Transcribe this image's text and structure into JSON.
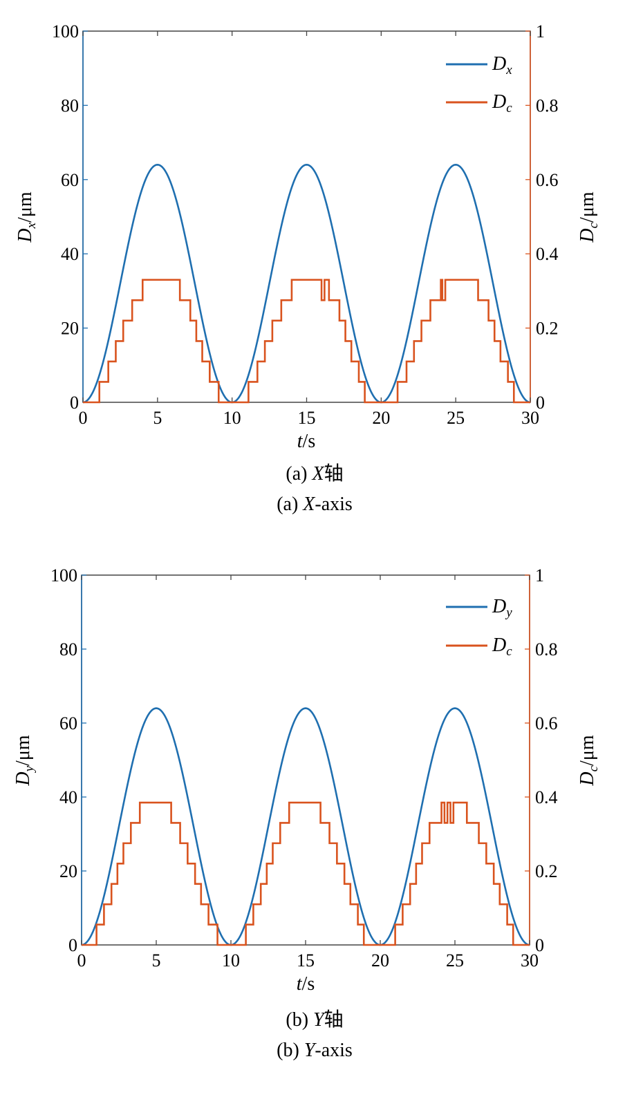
{
  "chart_data": [
    {
      "type": "line",
      "id": "a",
      "xlabel": {
        "main": "t",
        "unit": "/s"
      },
      "ylabel_left": {
        "main": "D",
        "sub": "x",
        "unit": "/μm"
      },
      "ylabel_right": {
        "main": "D",
        "sub": "c",
        "unit": "/μm"
      },
      "caption_cn": {
        "prefix": "(a) ",
        "var": "X",
        "suffix": "轴"
      },
      "caption_en": {
        "prefix": "(a) ",
        "var": "X",
        "suffix": "-axis"
      },
      "xlim": [
        0,
        30
      ],
      "ylim_left": [
        0,
        100
      ],
      "ylim_right": [
        0,
        1
      ],
      "x_ticks": [
        "0",
        "5",
        "10",
        "15",
        "20",
        "25",
        "30"
      ],
      "y_left_ticks": [
        "0",
        "20",
        "40",
        "60",
        "80",
        "100"
      ],
      "y_right_ticks": [
        "0",
        "0.2",
        "0.4",
        "0.6",
        "0.8",
        "1"
      ],
      "series": [
        {
          "name": "D",
          "sub": "x",
          "axis": "left",
          "color": "#1f6fb0",
          "shape": "raised_cosine",
          "peak": 64,
          "period": 10
        },
        {
          "name": "D",
          "sub": "c",
          "axis": "right",
          "color": "#d9531e",
          "shape": "step",
          "points": [
            [
              0,
              0
            ],
            [
              1.1,
              0
            ],
            [
              1.1,
              0.055
            ],
            [
              1.7,
              0.055
            ],
            [
              1.7,
              0.11
            ],
            [
              2.2,
              0.11
            ],
            [
              2.2,
              0.165
            ],
            [
              2.7,
              0.165
            ],
            [
              2.7,
              0.22
            ],
            [
              3.3,
              0.22
            ],
            [
              3.3,
              0.275
            ],
            [
              4.0,
              0.275
            ],
            [
              4.0,
              0.33
            ],
            [
              6.5,
              0.33
            ],
            [
              6.5,
              0.275
            ],
            [
              7.2,
              0.275
            ],
            [
              7.2,
              0.22
            ],
            [
              7.6,
              0.22
            ],
            [
              7.6,
              0.165
            ],
            [
              8.0,
              0.165
            ],
            [
              8.0,
              0.11
            ],
            [
              8.5,
              0.11
            ],
            [
              8.5,
              0.055
            ],
            [
              9.1,
              0.055
            ],
            [
              9.1,
              0
            ],
            [
              11.1,
              0
            ],
            [
              11.1,
              0.055
            ],
            [
              11.7,
              0.055
            ],
            [
              11.7,
              0.11
            ],
            [
              12.2,
              0.11
            ],
            [
              12.2,
              0.165
            ],
            [
              12.7,
              0.165
            ],
            [
              12.7,
              0.22
            ],
            [
              13.3,
              0.22
            ],
            [
              13.3,
              0.275
            ],
            [
              14.0,
              0.275
            ],
            [
              14.0,
              0.33
            ],
            [
              16.0,
              0.33
            ],
            [
              16.0,
              0.275
            ],
            [
              16.2,
              0.275
            ],
            [
              16.2,
              0.33
            ],
            [
              16.5,
              0.33
            ],
            [
              16.5,
              0.275
            ],
            [
              17.2,
              0.275
            ],
            [
              17.2,
              0.22
            ],
            [
              17.6,
              0.22
            ],
            [
              17.6,
              0.165
            ],
            [
              18.0,
              0.165
            ],
            [
              18.0,
              0.11
            ],
            [
              18.5,
              0.11
            ],
            [
              18.5,
              0.055
            ],
            [
              18.9,
              0.055
            ],
            [
              18.9,
              0
            ],
            [
              21.1,
              0
            ],
            [
              21.1,
              0.055
            ],
            [
              21.7,
              0.055
            ],
            [
              21.7,
              0.11
            ],
            [
              22.2,
              0.11
            ],
            [
              22.2,
              0.165
            ],
            [
              22.7,
              0.165
            ],
            [
              22.7,
              0.22
            ],
            [
              23.3,
              0.22
            ],
            [
              23.3,
              0.275
            ],
            [
              24.0,
              0.275
            ],
            [
              24.0,
              0.33
            ],
            [
              24.1,
              0.33
            ],
            [
              24.1,
              0.275
            ],
            [
              24.3,
              0.275
            ],
            [
              24.3,
              0.33
            ],
            [
              26.5,
              0.33
            ],
            [
              26.5,
              0.275
            ],
            [
              27.2,
              0.275
            ],
            [
              27.2,
              0.22
            ],
            [
              27.6,
              0.22
            ],
            [
              27.6,
              0.165
            ],
            [
              28.0,
              0.165
            ],
            [
              28.0,
              0.11
            ],
            [
              28.5,
              0.11
            ],
            [
              28.5,
              0.055
            ],
            [
              28.9,
              0.055
            ],
            [
              28.9,
              0
            ],
            [
              30,
              0
            ]
          ]
        }
      ]
    },
    {
      "type": "line",
      "id": "b",
      "xlabel": {
        "main": "t",
        "unit": "/s"
      },
      "ylabel_left": {
        "main": "D",
        "sub": "y",
        "unit": "/μm"
      },
      "ylabel_right": {
        "main": "D",
        "sub": "c",
        "unit": "/μm"
      },
      "caption_cn": {
        "prefix": "(b) ",
        "var": "Y",
        "suffix": "轴"
      },
      "caption_en": {
        "prefix": "(b) ",
        "var": "Y",
        "suffix": "-axis"
      },
      "xlim": [
        0,
        30
      ],
      "ylim_left": [
        0,
        100
      ],
      "ylim_right": [
        0,
        1
      ],
      "x_ticks": [
        "0",
        "5",
        "10",
        "15",
        "20",
        "25",
        "30"
      ],
      "y_left_ticks": [
        "0",
        "20",
        "40",
        "60",
        "80",
        "100"
      ],
      "y_right_ticks": [
        "0",
        "0.2",
        "0.4",
        "0.6",
        "0.8",
        "1"
      ],
      "series": [
        {
          "name": "D",
          "sub": "y",
          "axis": "left",
          "color": "#1f6fb0",
          "shape": "raised_cosine",
          "peak": 64,
          "period": 10
        },
        {
          "name": "D",
          "sub": "c",
          "axis": "right",
          "color": "#d9531e",
          "shape": "step",
          "points": [
            [
              0,
              0
            ],
            [
              1.0,
              0
            ],
            [
              1.0,
              0.055
            ],
            [
              1.5,
              0.055
            ],
            [
              1.5,
              0.11
            ],
            [
              2.0,
              0.11
            ],
            [
              2.0,
              0.165
            ],
            [
              2.4,
              0.165
            ],
            [
              2.4,
              0.22
            ],
            [
              2.8,
              0.22
            ],
            [
              2.8,
              0.275
            ],
            [
              3.3,
              0.275
            ],
            [
              3.3,
              0.33
            ],
            [
              3.9,
              0.33
            ],
            [
              3.9,
              0.385
            ],
            [
              6.0,
              0.385
            ],
            [
              6.0,
              0.33
            ],
            [
              6.6,
              0.33
            ],
            [
              6.6,
              0.275
            ],
            [
              7.1,
              0.275
            ],
            [
              7.1,
              0.22
            ],
            [
              7.6,
              0.22
            ],
            [
              7.6,
              0.165
            ],
            [
              8.0,
              0.165
            ],
            [
              8.0,
              0.11
            ],
            [
              8.5,
              0.11
            ],
            [
              8.5,
              0.055
            ],
            [
              9.1,
              0.055
            ],
            [
              9.1,
              0
            ],
            [
              11.0,
              0
            ],
            [
              11.0,
              0.055
            ],
            [
              11.5,
              0.055
            ],
            [
              11.5,
              0.11
            ],
            [
              12.0,
              0.11
            ],
            [
              12.0,
              0.165
            ],
            [
              12.4,
              0.165
            ],
            [
              12.4,
              0.22
            ],
            [
              12.8,
              0.22
            ],
            [
              12.8,
              0.275
            ],
            [
              13.3,
              0.275
            ],
            [
              13.3,
              0.33
            ],
            [
              13.9,
              0.33
            ],
            [
              13.9,
              0.385
            ],
            [
              16.0,
              0.385
            ],
            [
              16.0,
              0.33
            ],
            [
              16.6,
              0.33
            ],
            [
              16.6,
              0.275
            ],
            [
              17.1,
              0.275
            ],
            [
              17.1,
              0.22
            ],
            [
              17.6,
              0.22
            ],
            [
              17.6,
              0.165
            ],
            [
              18.0,
              0.165
            ],
            [
              18.0,
              0.11
            ],
            [
              18.5,
              0.11
            ],
            [
              18.5,
              0.055
            ],
            [
              18.9,
              0.055
            ],
            [
              18.9,
              0
            ],
            [
              21.0,
              0
            ],
            [
              21.0,
              0.055
            ],
            [
              21.5,
              0.055
            ],
            [
              21.5,
              0.11
            ],
            [
              22.0,
              0.11
            ],
            [
              22.0,
              0.165
            ],
            [
              22.4,
              0.165
            ],
            [
              22.4,
              0.22
            ],
            [
              22.8,
              0.22
            ],
            [
              22.8,
              0.275
            ],
            [
              23.3,
              0.275
            ],
            [
              23.3,
              0.33
            ],
            [
              24.1,
              0.33
            ],
            [
              24.1,
              0.385
            ],
            [
              24.3,
              0.385
            ],
            [
              24.3,
              0.33
            ],
            [
              24.5,
              0.33
            ],
            [
              24.5,
              0.385
            ],
            [
              24.7,
              0.385
            ],
            [
              24.7,
              0.33
            ],
            [
              24.9,
              0.33
            ],
            [
              24.9,
              0.385
            ],
            [
              25.8,
              0.385
            ],
            [
              25.8,
              0.33
            ],
            [
              26.6,
              0.33
            ],
            [
              26.6,
              0.275
            ],
            [
              27.1,
              0.275
            ],
            [
              27.1,
              0.22
            ],
            [
              27.6,
              0.22
            ],
            [
              27.6,
              0.165
            ],
            [
              28.0,
              0.165
            ],
            [
              28.0,
              0.11
            ],
            [
              28.5,
              0.11
            ],
            [
              28.5,
              0.055
            ],
            [
              28.9,
              0.055
            ],
            [
              28.9,
              0
            ],
            [
              30,
              0
            ]
          ]
        }
      ]
    }
  ]
}
